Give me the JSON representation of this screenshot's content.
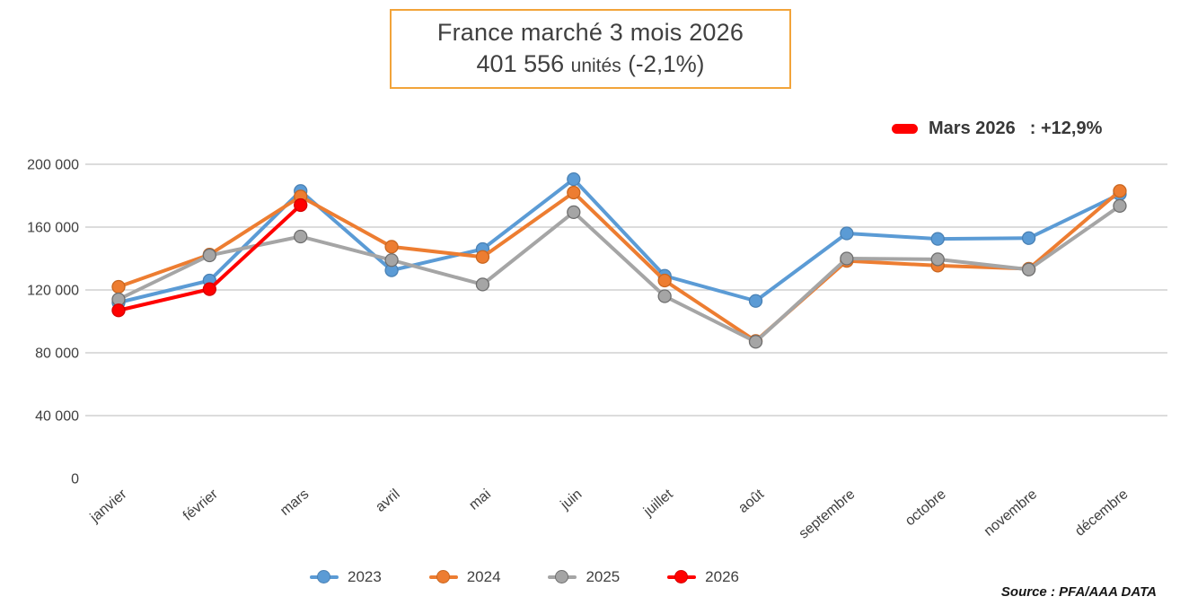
{
  "title": {
    "line1": "France marché 3 mois 2026",
    "value": "401 556",
    "units_word": "unités",
    "pct": "(-2,1%)"
  },
  "highlight": {
    "label": "Mars 2026",
    "value": ": +12,9%",
    "color": "#FF0000"
  },
  "source": "Source : PFA/AAA DATA",
  "chart_data": {
    "type": "line",
    "title": "France marché 3 mois 2026 — 401 556 unités (-2,1%)",
    "categories": [
      "janvier",
      "février",
      "mars",
      "avril",
      "mai",
      "juin",
      "juillet",
      "août",
      "septembre",
      "octobre",
      "novembre",
      "décembre"
    ],
    "series": [
      {
        "name": "2023",
        "color": "#5B9BD5",
        "marker_edge": "#4A81B4",
        "values": [
          112000,
          126000,
          183000,
          132500,
          146000,
          190500,
          129000,
          113000,
          156000,
          152500,
          153000,
          181000
        ]
      },
      {
        "name": "2024",
        "color": "#ED7D31",
        "marker_edge": "#C9661F",
        "values": [
          122000,
          142500,
          179500,
          147500,
          141000,
          182000,
          126000,
          87500,
          138500,
          135500,
          133500,
          183000
        ]
      },
      {
        "name": "2025",
        "color": "#A5A5A5",
        "marker_edge": "#6E6E6E",
        "values": [
          114000,
          142000,
          154000,
          139000,
          123500,
          169500,
          116000,
          87000,
          140000,
          139500,
          133000,
          173500
        ]
      },
      {
        "name": "2026",
        "color": "#FF0000",
        "marker_edge": "#D40000",
        "values": [
          107000,
          120500,
          174000
        ]
      }
    ],
    "ylim": [
      0,
      200000
    ],
    "yticks": [
      0,
      40000,
      80000,
      120000,
      160000,
      200000
    ],
    "ytick_labels": [
      "0",
      "40 000",
      "80 000",
      "120 000",
      "160 000",
      "200 000"
    ],
    "grid": true,
    "gridline_color": "#C6C6C6",
    "axis_text_color": "#404040",
    "legend_position": "bottom",
    "annotation": "Mars 2026 : +12,9%"
  }
}
